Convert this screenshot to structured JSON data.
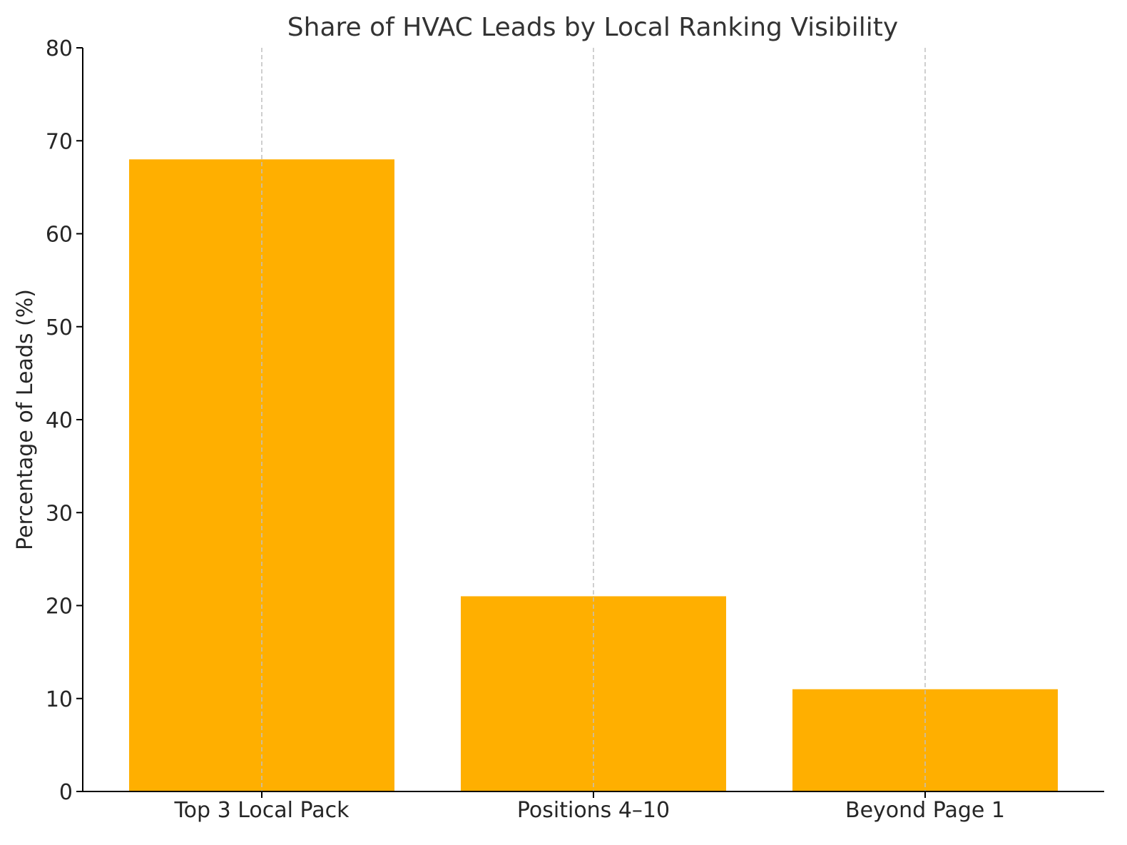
{
  "chart_data": {
    "type": "bar",
    "title": "Share of HVAC Leads by Local Ranking Visibility",
    "xlabel": "",
    "ylabel": "Percentage of Leads (%)",
    "categories": [
      "Top 3 Local Pack",
      "Positions 4–10",
      "Beyond Page 1"
    ],
    "values": [
      68,
      21,
      11
    ],
    "ylim": [
      0,
      80
    ],
    "yticks": [
      0,
      10,
      20,
      30,
      40,
      50,
      60,
      70,
      80
    ],
    "ytick_labels": [
      "0",
      "10",
      "20",
      "30",
      "40",
      "50",
      "60",
      "70",
      "80"
    ],
    "grid": "vertical dashed",
    "bar_color": "#FFAF00",
    "grid_color": "#BFBFBF",
    "axis_color": "#000000"
  }
}
